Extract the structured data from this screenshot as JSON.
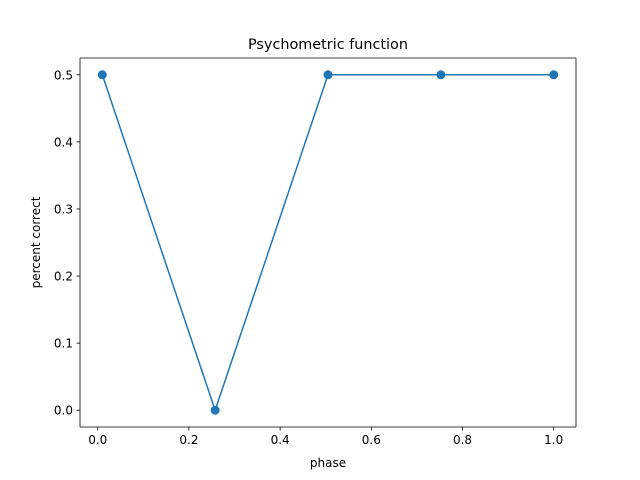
{
  "chart_data": {
    "type": "line",
    "title": "Psychometric function",
    "xlabel": "phase",
    "ylabel": "percent correct",
    "xlim": [
      -0.0389,
      1.0489
    ],
    "ylim": [
      -0.025,
      0.525
    ],
    "xticks": [
      0.0,
      0.2,
      0.4,
      0.6,
      0.8,
      1.0
    ],
    "xtick_labels": [
      "0.0",
      "0.2",
      "0.4",
      "0.6",
      "0.8",
      "1.0"
    ],
    "yticks": [
      0.0,
      0.1,
      0.2,
      0.3,
      0.4,
      0.5
    ],
    "ytick_labels": [
      "0.0",
      "0.1",
      "0.2",
      "0.3",
      "0.4",
      "0.5"
    ],
    "grid": false,
    "series": [
      {
        "color": "#1f77b4",
        "marker": "circle",
        "x": [
          0.01,
          0.2575,
          0.505,
          0.7525,
          1.0
        ],
        "y": [
          0.5,
          0.0,
          0.5,
          0.5,
          0.5
        ]
      }
    ]
  }
}
